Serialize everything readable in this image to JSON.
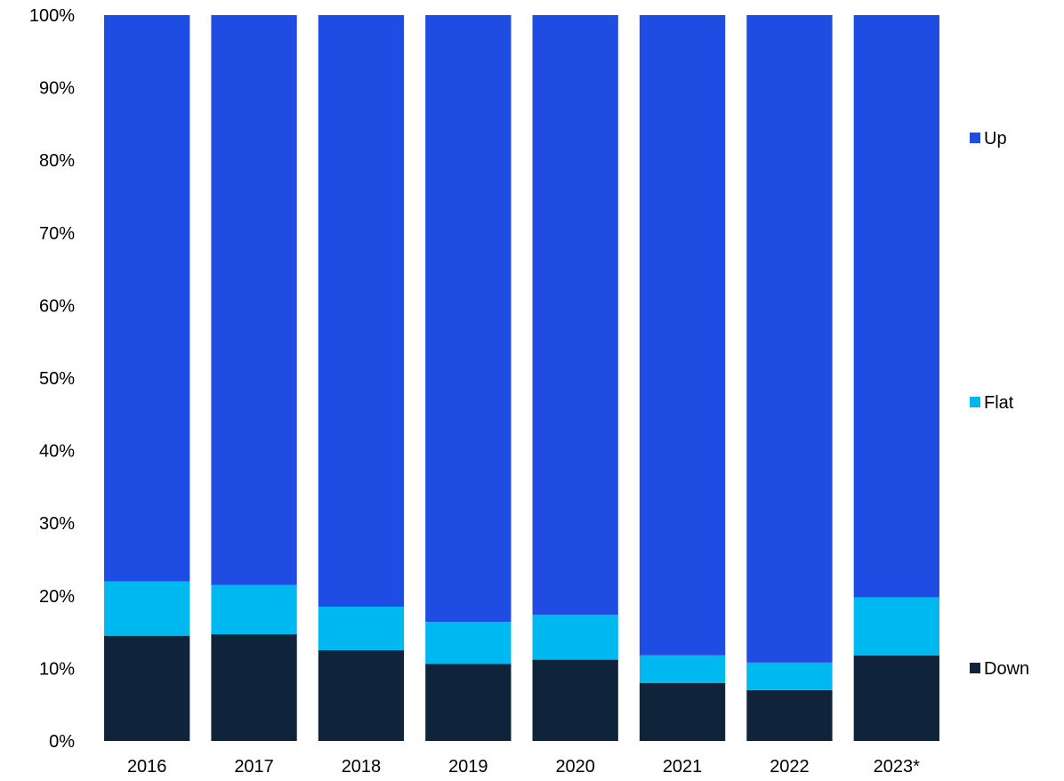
{
  "chart_data": {
    "type": "bar",
    "stacked": "percent",
    "categories": [
      "2016",
      "2017",
      "2018",
      "2019",
      "2020",
      "2021",
      "2022",
      "2023*"
    ],
    "series": [
      {
        "name": "Down",
        "color": "#0f243b",
        "values": [
          14.5,
          14.7,
          12.5,
          10.6,
          11.2,
          8.0,
          7.0,
          11.8
        ]
      },
      {
        "name": "Flat",
        "color": "#00b8f0",
        "values": [
          7.5,
          6.8,
          6.0,
          5.8,
          6.2,
          3.8,
          3.8,
          8.0
        ]
      },
      {
        "name": "Up",
        "color": "#1f4ce3",
        "values": [
          78.0,
          78.5,
          81.5,
          83.6,
          82.6,
          88.2,
          89.2,
          80.2
        ]
      }
    ],
    "y_ticks": [
      "0%",
      "10%",
      "20%",
      "30%",
      "40%",
      "50%",
      "60%",
      "70%",
      "80%",
      "90%",
      "100%"
    ],
    "ylim": [
      0,
      100
    ],
    "grid": false,
    "legend": {
      "position": "right",
      "order": [
        "Up",
        "Flat",
        "Down"
      ]
    },
    "title": "",
    "xlabel": "",
    "ylabel": ""
  }
}
